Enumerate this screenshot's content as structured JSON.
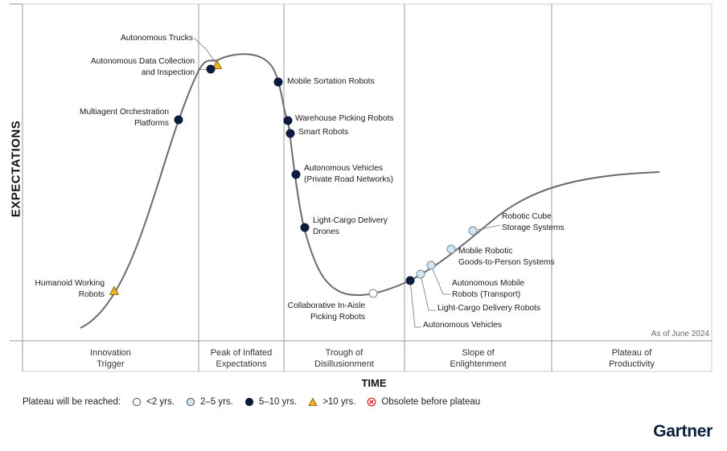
{
  "y_axis_label": "EXPECTATIONS",
  "x_axis_label": "TIME",
  "as_of": "As of June 2024",
  "brand": "Gartner",
  "phases": [
    {
      "lines": [
        "Innovation",
        "Trigger"
      ]
    },
    {
      "lines": [
        "Peak of Inflated",
        "Expectations"
      ]
    },
    {
      "lines": [
        "Trough of",
        "Disillusionment"
      ]
    },
    {
      "lines": [
        "Slope of",
        "Enlightenment"
      ]
    },
    {
      "lines": [
        "Plateau of",
        "Productivity"
      ]
    }
  ],
  "legend": {
    "title": "Plateau will be reached:",
    "items": [
      {
        "key": "lt2",
        "label": "<2 yrs."
      },
      {
        "key": "2to5",
        "label": "2–5 yrs."
      },
      {
        "key": "5to10",
        "label": "5–10 yrs."
      },
      {
        "key": "gt10",
        "label": ">10 yrs."
      },
      {
        "key": "obsolete",
        "label": "Obsolete before plateau"
      }
    ]
  },
  "colors": {
    "curve": "#6b6b6b",
    "grid": "#9a9a9a",
    "lt2_fill": "#ffffff",
    "2to5_fill": "#cfe6f3",
    "5to10_fill": "#0c1c3e",
    "gt10_fill": "#f2b21c",
    "obsolete": "#d6202a"
  },
  "technologies": [
    {
      "name": "Autonomous Trucks",
      "lines": [
        "Autonomous Trucks"
      ],
      "plateau": "gt10"
    },
    {
      "name": "Autonomous Data Collection and Inspection",
      "lines": [
        "Autonomous Data Collection",
        "and Inspection"
      ],
      "plateau": "5to10"
    },
    {
      "name": "Multiagent Orchestration Platforms",
      "lines": [
        "Multiagent Orchestration",
        "Platforms"
      ],
      "plateau": "5to10"
    },
    {
      "name": "Humanoid Working Robots",
      "lines": [
        "Humanoid Working",
        "Robots"
      ],
      "plateau": "gt10"
    },
    {
      "name": "Mobile Sortation Robots",
      "lines": [
        "Mobile Sortation Robots"
      ],
      "plateau": "5to10"
    },
    {
      "name": "Warehouse Picking Robots",
      "lines": [
        "Warehouse Picking Robots"
      ],
      "plateau": "5to10"
    },
    {
      "name": "Smart Robots",
      "lines": [
        "Smart Robots"
      ],
      "plateau": "5to10"
    },
    {
      "name": "Autonomous Vehicles (Private Road Networks)",
      "lines": [
        "Autonomous Vehicles",
        "(Private Road Networks)"
      ],
      "plateau": "5to10"
    },
    {
      "name": "Light-Cargo Delivery Drones",
      "lines": [
        "Light-Cargo Delivery",
        "Drones"
      ],
      "plateau": "5to10"
    },
    {
      "name": "Collaborative In-Aisle Picking Robots",
      "lines": [
        "Collaborative In-Aisle",
        "Picking Robots"
      ],
      "plateau": "lt2"
    },
    {
      "name": "Autonomous Vehicles",
      "lines": [
        "Autonomous Vehicles"
      ],
      "plateau": "5to10"
    },
    {
      "name": "Light-Cargo Delivery Robots",
      "lines": [
        "Light-Cargo Delivery Robots"
      ],
      "plateau": "2to5"
    },
    {
      "name": "Autonomous Mobile Robots (Transport)",
      "lines": [
        "Autonomous Mobile",
        "Robots (Transport)"
      ],
      "plateau": "2to5"
    },
    {
      "name": "Mobile Robotic Goods-to-Person Systems",
      "lines": [
        "Mobile Robotic",
        "Goods-to-Person Systems"
      ],
      "plateau": "2to5"
    },
    {
      "name": "Robotic Cube Storage Systems",
      "lines": [
        "Robotic Cube",
        "Storage Systems"
      ],
      "plateau": "2to5"
    }
  ]
}
